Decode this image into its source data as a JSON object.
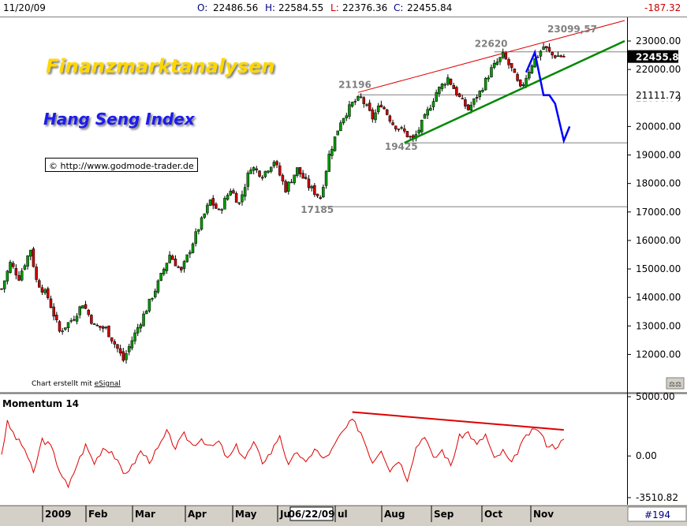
{
  "header": {
    "date": "11/20/09",
    "open_label": "O:",
    "open": "22486.56",
    "high_label": "H:",
    "high": "22584.55",
    "low_label": "L:",
    "low": "22376.36",
    "close_label": "C:",
    "close": "22455.84",
    "change": "-187.32"
  },
  "overlay": {
    "title": "Finanzmarktanalysen",
    "subtitle": "Hang Seng Index",
    "copyright": "© http://www.godmode-trader.de",
    "credit_prefix": "Chart erstellt mit ",
    "credit_brand": "eSignal"
  },
  "indicator_label": "Momentum 14",
  "footer": {
    "symbol": "#194",
    "date_box": "06/22/09"
  },
  "colors": {
    "up": "#009900",
    "down": "#cc0000",
    "channel_top": "#dd0000",
    "support": "#008800",
    "forecast": "#0000ff",
    "momentum": "#dd0000",
    "level": "#808080"
  },
  "chart_data": {
    "type": "candlestick",
    "ylim": [
      11200,
      23800
    ],
    "yticks": [
      "23000.00",
      "22000.00",
      "21000.00",
      "20000.00",
      "19000.00",
      "18000.00",
      "17000.00",
      "16000.00",
      "15000.00",
      "14000.00",
      "13000.00",
      "12000.00"
    ],
    "price_labels": {
      "last": "22455.84",
      "level": "21111.72"
    },
    "annotations": [
      "23099,57",
      "22620",
      "21196",
      "19425",
      "17185"
    ],
    "levels": [
      22620,
      21111.72,
      19425,
      17185
    ],
    "x_labels": [
      "2009",
      "Feb",
      "Mar",
      "Apr",
      "May",
      "Ju",
      "ul",
      "Aug",
      "Sep",
      "Oct",
      "Nov"
    ],
    "anchors": [
      {
        "t": 0,
        "v": 14300
      },
      {
        "t": 3,
        "v": 15200
      },
      {
        "t": 6,
        "v": 14700
      },
      {
        "t": 10,
        "v": 15700
      },
      {
        "t": 12,
        "v": 14600
      },
      {
        "t": 16,
        "v": 14000
      },
      {
        "t": 20,
        "v": 12800
      },
      {
        "t": 25,
        "v": 13300
      },
      {
        "t": 28,
        "v": 13800
      },
      {
        "t": 32,
        "v": 13000
      },
      {
        "t": 36,
        "v": 12900
      },
      {
        "t": 40,
        "v": 12200
      },
      {
        "t": 42,
        "v": 11800
      },
      {
        "t": 45,
        "v": 12500
      },
      {
        "t": 50,
        "v": 13600
      },
      {
        "t": 54,
        "v": 14500
      },
      {
        "t": 58,
        "v": 15500
      },
      {
        "t": 62,
        "v": 14900
      },
      {
        "t": 67,
        "v": 16200
      },
      {
        "t": 72,
        "v": 17400
      },
      {
        "t": 75,
        "v": 17000
      },
      {
        "t": 79,
        "v": 17800
      },
      {
        "t": 82,
        "v": 17300
      },
      {
        "t": 86,
        "v": 18600
      },
      {
        "t": 90,
        "v": 18300
      },
      {
        "t": 94,
        "v": 18800
      },
      {
        "t": 98,
        "v": 17800
      },
      {
        "t": 102,
        "v": 18500
      },
      {
        "t": 106,
        "v": 17900
      },
      {
        "t": 110,
        "v": 17500
      },
      {
        "t": 113,
        "v": 19000
      },
      {
        "t": 117,
        "v": 20200
      },
      {
        "t": 121,
        "v": 20800
      },
      {
        "t": 124,
        "v": 21000
      },
      {
        "t": 128,
        "v": 20300
      },
      {
        "t": 131,
        "v": 20800
      },
      {
        "t": 135,
        "v": 20100
      },
      {
        "t": 139,
        "v": 19800
      },
      {
        "t": 142,
        "v": 19500
      },
      {
        "t": 146,
        "v": 20300
      },
      {
        "t": 150,
        "v": 21200
      },
      {
        "t": 154,
        "v": 21700
      },
      {
        "t": 158,
        "v": 21000
      },
      {
        "t": 161,
        "v": 20600
      },
      {
        "t": 165,
        "v": 21200
      },
      {
        "t": 169,
        "v": 22000
      },
      {
        "t": 173,
        "v": 22500
      },
      {
        "t": 176,
        "v": 22000
      },
      {
        "t": 179,
        "v": 21300
      },
      {
        "t": 183,
        "v": 22200
      },
      {
        "t": 187,
        "v": 22800
      },
      {
        "t": 190,
        "v": 22500
      },
      {
        "t": 194,
        "v": 22456
      }
    ],
    "trendlines": [
      {
        "name": "resistance",
        "from": [
          123,
          21196
        ],
        "to": [
          215,
          23720
        ]
      },
      {
        "name": "support",
        "from": [
          139,
          19425
        ],
        "to": [
          215,
          23000
        ]
      }
    ],
    "forecast_path": [
      [
        181,
        21900
      ],
      [
        184,
        22600
      ],
      [
        187,
        21100
      ],
      [
        189,
        21100
      ],
      [
        191,
        20800
      ],
      [
        194,
        19500
      ],
      [
        196,
        20000
      ]
    ],
    "momentum": {
      "ylim": [
        -3510.82,
        5000
      ],
      "yticks": [
        "5000.00",
        "0.00",
        "-3510.82"
      ],
      "anchors": [
        {
          "t": 0,
          "v": 200
        },
        {
          "t": 2,
          "v": 2800
        },
        {
          "t": 5,
          "v": 1500
        },
        {
          "t": 8,
          "v": 600
        },
        {
          "t": 11,
          "v": -1500
        },
        {
          "t": 14,
          "v": 1400
        },
        {
          "t": 17,
          "v": 800
        },
        {
          "t": 20,
          "v": -1200
        },
        {
          "t": 23,
          "v": -2700
        },
        {
          "t": 26,
          "v": -700
        },
        {
          "t": 29,
          "v": 900
        },
        {
          "t": 32,
          "v": -600
        },
        {
          "t": 35,
          "v": 700
        },
        {
          "t": 38,
          "v": 400
        },
        {
          "t": 42,
          "v": -1500
        },
        {
          "t": 45,
          "v": -900
        },
        {
          "t": 48,
          "v": 400
        },
        {
          "t": 51,
          "v": -400
        },
        {
          "t": 54,
          "v": 600
        },
        {
          "t": 57,
          "v": 2000
        },
        {
          "t": 60,
          "v": 700
        },
        {
          "t": 63,
          "v": 1800
        },
        {
          "t": 66,
          "v": 900
        },
        {
          "t": 69,
          "v": 1500
        },
        {
          "t": 72,
          "v": 700
        },
        {
          "t": 75,
          "v": 1200
        },
        {
          "t": 78,
          "v": -300
        },
        {
          "t": 81,
          "v": 800
        },
        {
          "t": 84,
          "v": -200
        },
        {
          "t": 87,
          "v": 1100
        },
        {
          "t": 90,
          "v": -500
        },
        {
          "t": 93,
          "v": 300
        },
        {
          "t": 96,
          "v": 1800
        },
        {
          "t": 99,
          "v": -900
        },
        {
          "t": 102,
          "v": 400
        },
        {
          "t": 105,
          "v": -700
        },
        {
          "t": 108,
          "v": 700
        },
        {
          "t": 111,
          "v": -300
        },
        {
          "t": 114,
          "v": 500
        },
        {
          "t": 117,
          "v": 1800
        },
        {
          "t": 121,
          "v": 3000
        },
        {
          "t": 124,
          "v": 2000
        },
        {
          "t": 128,
          "v": -500
        },
        {
          "t": 131,
          "v": 600
        },
        {
          "t": 134,
          "v": -1200
        },
        {
          "t": 137,
          "v": -300
        },
        {
          "t": 140,
          "v": -1900
        },
        {
          "t": 143,
          "v": 700
        },
        {
          "t": 146,
          "v": 1800
        },
        {
          "t": 149,
          "v": -300
        },
        {
          "t": 152,
          "v": 500
        },
        {
          "t": 155,
          "v": -800
        },
        {
          "t": 158,
          "v": 1600
        },
        {
          "t": 161,
          "v": 2000
        },
        {
          "t": 164,
          "v": 900
        },
        {
          "t": 167,
          "v": 1800
        },
        {
          "t": 170,
          "v": -300
        },
        {
          "t": 173,
          "v": 400
        },
        {
          "t": 176,
          "v": -700
        },
        {
          "t": 179,
          "v": 900
        },
        {
          "t": 182,
          "v": 1900
        },
        {
          "t": 185,
          "v": 2300
        },
        {
          "t": 188,
          "v": 1000
        },
        {
          "t": 191,
          "v": 800
        },
        {
          "t": 194,
          "v": 1300
        }
      ],
      "trendline": {
        "from": [
          121,
          3700
        ],
        "to": [
          194,
          2200
        ]
      }
    }
  }
}
